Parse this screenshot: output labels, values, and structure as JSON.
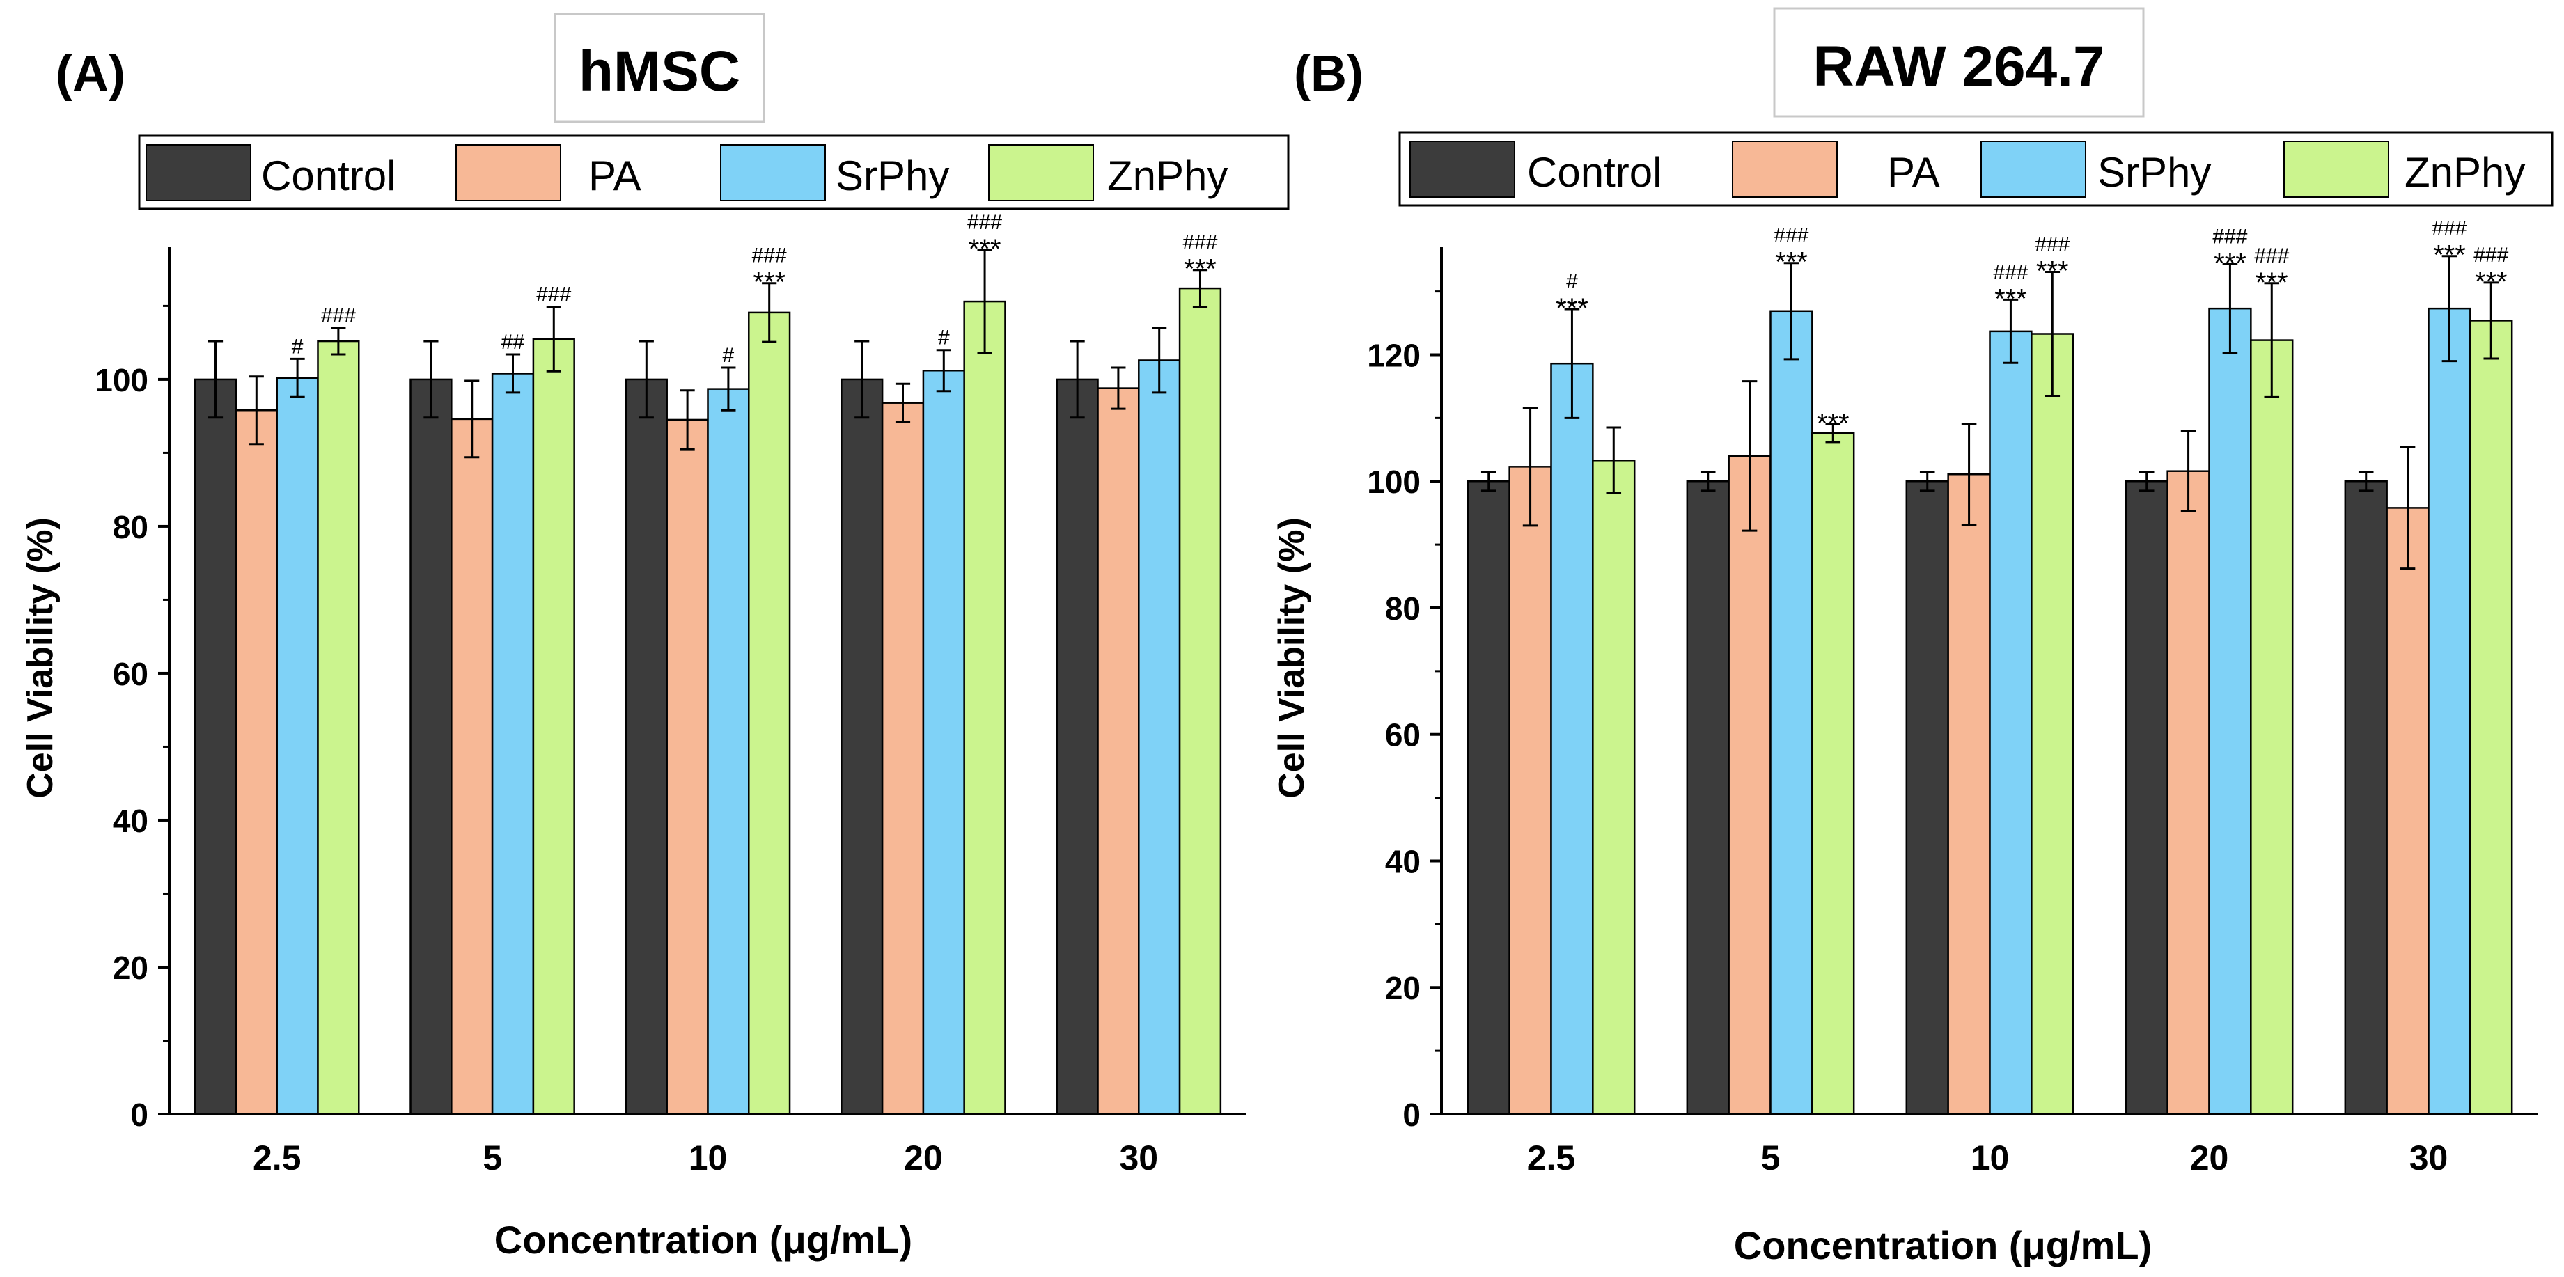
{
  "figure": {
    "legend_labels": [
      "Control",
      "PA",
      "SrPhy",
      "ZnPhy"
    ],
    "colors": {
      "Control": "#3c3c3c",
      "PA": "#f7b896",
      "SrPhy": "#7fd2f7",
      "ZnPhy": "#cbf48e"
    }
  },
  "chart_data": [
    {
      "panel_label": "(A)",
      "title": "hMSC",
      "type": "bar",
      "xlabel": "Concentration (μg/mL)",
      "ylabel": "Cell Viability (%)",
      "ylim": [
        0,
        118
      ],
      "yticks": [
        0,
        20,
        40,
        60,
        80,
        100
      ],
      "categories": [
        "2.5",
        "5",
        "10",
        "20",
        "30"
      ],
      "series": [
        {
          "name": "Control",
          "values": [
            100,
            100,
            100,
            100,
            100
          ],
          "errors": [
            5.2,
            5.2,
            5.2,
            5.2,
            5.2
          ],
          "annotations": [
            "",
            "",
            "",
            "",
            ""
          ]
        },
        {
          "name": "PA",
          "values": [
            95.8,
            94.6,
            94.5,
            96.8,
            98.8
          ],
          "errors": [
            4.6,
            5.2,
            4.0,
            2.6,
            2.8
          ],
          "annotations": [
            "",
            "",
            "",
            "",
            ""
          ]
        },
        {
          "name": "SrPhy",
          "values": [
            100.2,
            100.8,
            98.7,
            101.2,
            102.6
          ],
          "errors": [
            2.6,
            2.6,
            2.9,
            2.8,
            4.4
          ],
          "annotations": [
            "#",
            "##",
            "#",
            "#",
            ""
          ]
        },
        {
          "name": "ZnPhy",
          "values": [
            105.2,
            105.5,
            109.1,
            110.6,
            112.4
          ],
          "errors": [
            1.8,
            4.4,
            4.0,
            7.0,
            2.5
          ],
          "annotations": [
            "###",
            "###",
            "###\n***",
            "###\n***",
            "###\n***"
          ]
        }
      ]
    },
    {
      "panel_label": "(B)",
      "title": "RAW 264.7",
      "type": "bar",
      "xlabel": "Concentration (μg/mL)",
      "ylabel": "Cell Viability (%)",
      "ylim": [
        0,
        137
      ],
      "yticks": [
        0,
        20,
        40,
        60,
        80,
        100,
        120
      ],
      "categories": [
        "2.5",
        "5",
        "10",
        "20",
        "30"
      ],
      "series": [
        {
          "name": "Control",
          "values": [
            100,
            100,
            100,
            100,
            100
          ],
          "errors": [
            1.5,
            1.5,
            1.5,
            1.5,
            1.5
          ],
          "annotations": [
            "",
            "",
            "",
            "",
            ""
          ]
        },
        {
          "name": "PA",
          "values": [
            102.3,
            104.0,
            101.1,
            101.6,
            95.8
          ],
          "errors": [
            9.3,
            11.8,
            8.0,
            6.3,
            9.6
          ],
          "annotations": [
            "",
            "",
            "",
            "",
            ""
          ]
        },
        {
          "name": "SrPhy",
          "values": [
            118.6,
            126.9,
            123.7,
            127.3,
            127.3
          ],
          "errors": [
            8.6,
            7.6,
            5.0,
            7.0,
            8.3
          ],
          "annotations": [
            "#\n***",
            "###\n***",
            "###\n***",
            "###\n***",
            "###\n***"
          ]
        },
        {
          "name": "ZnPhy",
          "values": [
            103.3,
            107.6,
            123.3,
            122.3,
            125.4
          ],
          "errors": [
            5.2,
            1.4,
            9.8,
            9.0,
            6.0
          ],
          "annotations": [
            "",
            "***",
            "###\n***",
            "###\n***",
            "###\n***"
          ]
        }
      ]
    }
  ]
}
